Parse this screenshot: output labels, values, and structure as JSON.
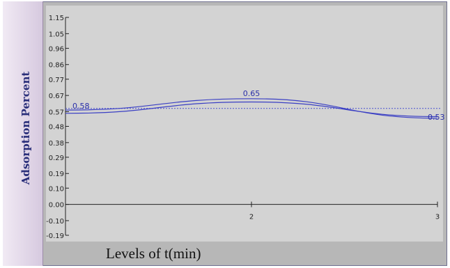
{
  "chart_data": {
    "type": "line",
    "title": "",
    "xlabel": "Levels of t(min)",
    "ylabel": "Adsorption Percent",
    "x_tick_labels": [
      "2",
      "3"
    ],
    "y_tick_labels": [
      "1.15",
      "1.05",
      "0.96",
      "0.86",
      "0.77",
      "0.67",
      "0.57",
      "0.48",
      "0.38",
      "0.29",
      "0.19",
      "0.10",
      "0.00",
      "-0.10",
      "-0.19"
    ],
    "ylim": [
      -0.19,
      1.15
    ],
    "xlim": [
      1,
      3
    ],
    "reference_line": 0.59,
    "series": [
      {
        "x": [
          1,
          2,
          3
        ],
        "values": [
          0.58,
          0.65,
          0.53
        ]
      },
      {
        "x": [
          1,
          2,
          3
        ],
        "values": [
          0.56,
          0.63,
          0.54
        ]
      }
    ],
    "point_labels": [
      {
        "x": 1,
        "text": "0.58"
      },
      {
        "x": 2,
        "text": "0.65"
      },
      {
        "x": 3,
        "text": "0.53"
      }
    ],
    "colors": {
      "line": "#3a3fc4",
      "reference": "#4a4fd0",
      "axis": "#222222"
    }
  }
}
